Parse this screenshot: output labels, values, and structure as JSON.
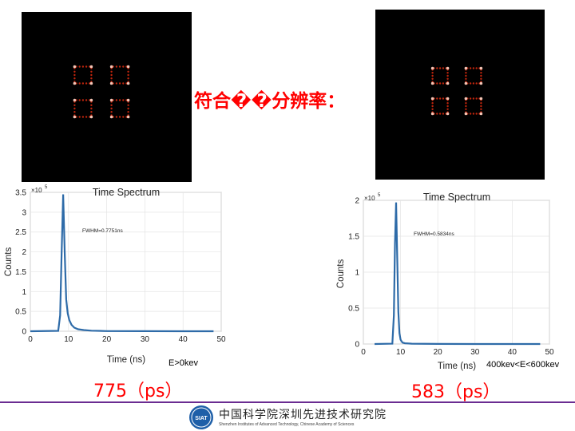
{
  "title": "符合��分辨率：",
  "panels": [
    {
      "energy_window": "E>0kev",
      "resolution": "775（ps）",
      "chart": {
        "title": "Time Spectrum",
        "xlabel": "Time (ns)",
        "ylabel": "Counts",
        "multiplier": "×10^5",
        "annotation": "FWHM=0.7751ns",
        "xticks": [
          "0",
          "10",
          "20",
          "30",
          "40",
          "50"
        ],
        "yticks": [
          "0",
          "0.5",
          "1",
          "1.5",
          "2",
          "2.5",
          "3",
          "3.5"
        ]
      }
    },
    {
      "energy_window": "400kev<E<600kev",
      "resolution": "583（ps）",
      "chart": {
        "title": "Time Spectrum",
        "xlabel": "Time (ns)",
        "ylabel": "Counts",
        "multiplier": "×10^5",
        "annotation": "FWHM=0.5834ns",
        "xticks": [
          "0",
          "10",
          "20",
          "30",
          "40",
          "50"
        ],
        "yticks": [
          "0",
          "0.5",
          "1",
          "1.5",
          "2"
        ]
      }
    }
  ],
  "footer": {
    "org_cn": "中国科学院深圳先进技术研究院",
    "org_en": "Shenzhen Institutes of Advanced Technology, Chinese Academy of Sciences",
    "logo_text": "SIAT"
  },
  "colors": {
    "accent": "#ff0000",
    "series": "#2e6ba8",
    "rule": "#6a2c91",
    "image_background": "#000000",
    "image_spot": "#ff3010"
  },
  "chart_data": [
    {
      "type": "line",
      "title": "Time Spectrum",
      "xlabel": "Time (ns)",
      "ylabel": "Counts",
      "y_multiplier": "×10^5",
      "xlim": [
        0,
        50
      ],
      "ylim": [
        0,
        3.5
      ],
      "grid": true,
      "annotation": "FWHM=0.7751ns",
      "series": [
        {
          "x": [
            0,
            7.3,
            7.8,
            8.2,
            8.6,
            9.0,
            9.4,
            9.8,
            10.2,
            10.8,
            11.5,
            12.5,
            14,
            16,
            20,
            30,
            40,
            48
          ],
          "y": [
            0,
            0.01,
            0.4,
            2.0,
            3.45,
            2.0,
            0.8,
            0.45,
            0.28,
            0.16,
            0.09,
            0.05,
            0.03,
            0.015,
            0.005,
            0.002,
            0.001,
            0
          ]
        }
      ]
    },
    {
      "type": "line",
      "title": "Time Spectrum",
      "xlabel": "Time (ns)",
      "ylabel": "Counts",
      "y_multiplier": "×10^5",
      "xlim": [
        0,
        50
      ],
      "ylim": [
        0,
        2
      ],
      "grid": true,
      "annotation": "FWHM=0.5834ns",
      "series": [
        {
          "x": [
            3,
            7.8,
            8.2,
            8.5,
            8.8,
            9.1,
            9.4,
            9.7,
            10.0,
            10.5,
            11.2,
            13,
            20,
            30,
            40,
            47.5
          ],
          "y": [
            0,
            0.005,
            0.4,
            1.4,
            1.97,
            1.2,
            0.45,
            0.15,
            0.06,
            0.02,
            0.01,
            0.004,
            0.001,
            0,
            0,
            0
          ]
        }
      ]
    }
  ]
}
